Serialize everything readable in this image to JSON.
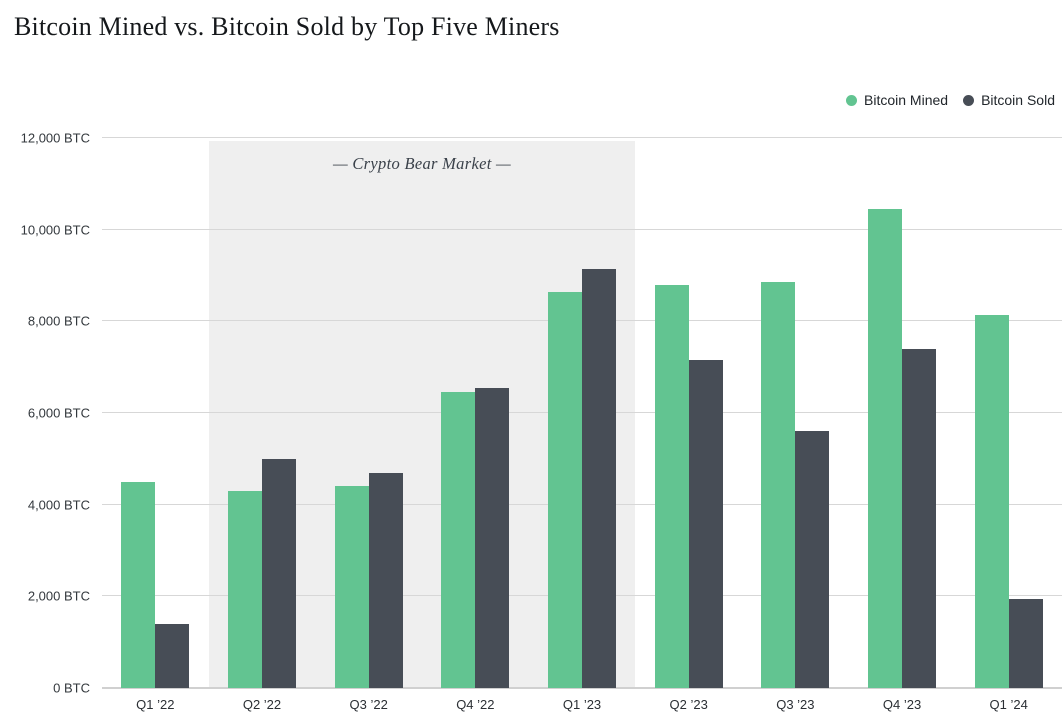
{
  "page": {
    "title": "Bitcoin Mined vs. Bitcoin Sold by Top Five Miners"
  },
  "legend": {
    "mined_label": "Bitcoin Mined",
    "sold_label": "Bitcoin Sold"
  },
  "colors": {
    "mined": "#62c491",
    "sold": "#474d56",
    "bear_region": "#efefef",
    "gridline": "#d7d7d7"
  },
  "chart_data": {
    "type": "bar",
    "title": "Bitcoin Mined vs. Bitcoin Sold by Top Five Miners",
    "categories": [
      "Q1 ’22",
      "Q2 ’22",
      "Q3 ’22",
      "Q4 ’22",
      "Q1 ’23",
      "Q2 ’23",
      "Q3 ’23",
      "Q4 ’23",
      "Q1 ’24"
    ],
    "series": [
      {
        "name": "Bitcoin Mined",
        "color": "#62c491",
        "values": [
          4500,
          4300,
          4400,
          6450,
          8650,
          8800,
          8850,
          10450,
          8150
        ]
      },
      {
        "name": "Bitcoin Sold",
        "color": "#474d56",
        "values": [
          1400,
          5000,
          4700,
          6550,
          9150,
          7150,
          5600,
          7400,
          1950
        ]
      }
    ],
    "xlabel": "",
    "ylabel": "",
    "ylim": [
      0,
      12000
    ],
    "ytick_step": 2000,
    "ytick_labels": [
      "0 BTC",
      "2,000 BTC",
      "4,000 BTC",
      "6,000 BTC",
      "8,000 BTC",
      "10,000 BTC",
      "12,000 BTC"
    ],
    "grid": true,
    "legend_position": "top-right",
    "annotations": [
      {
        "type": "shaded-region",
        "text": "— Crypto Bear Market —",
        "from_category": "Q2 ’22",
        "to_category": "Q1 ’23",
        "region_color": "#efefef"
      }
    ]
  }
}
